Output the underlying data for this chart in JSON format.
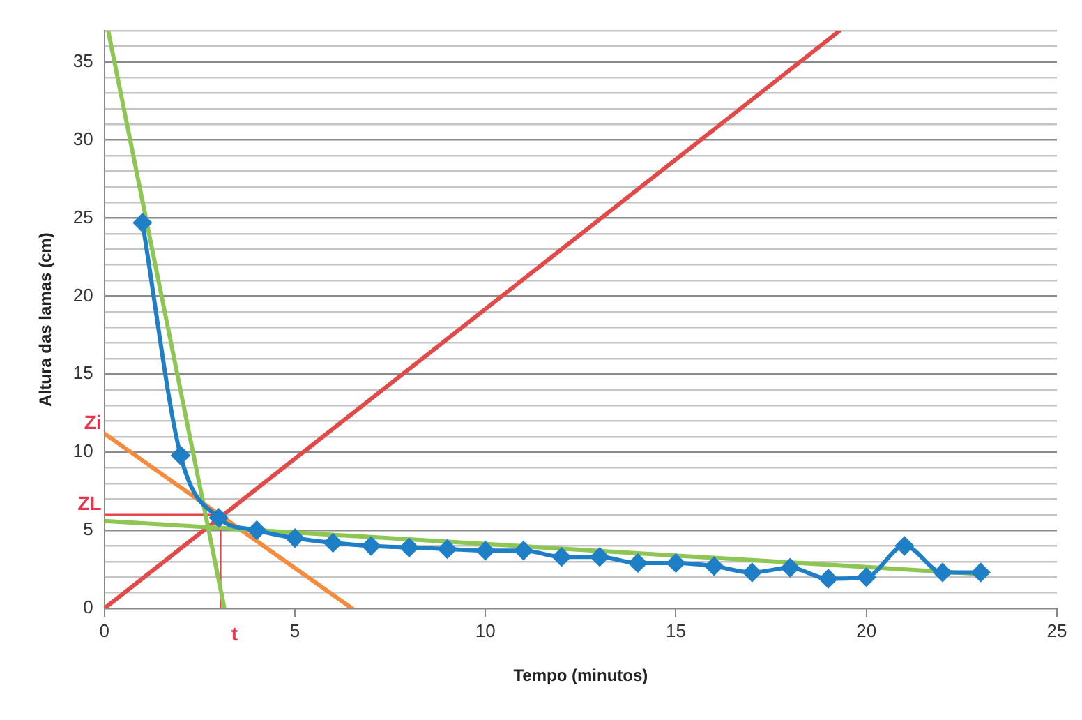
{
  "chart_data": {
    "type": "line",
    "xlabel": "Tempo (minutos)",
    "ylabel": "Altura das lamas (cm)",
    "xlim": [
      0,
      25
    ],
    "xticks": [
      0,
      5,
      10,
      15,
      20,
      25
    ],
    "ylim": [
      0,
      37
    ],
    "yticks": [
      0,
      {
        "value": 1,
        "label": null
      },
      {
        "value": 2,
        "label": null
      },
      {
        "value": 3,
        "label": null
      },
      {
        "value": 4,
        "label": null
      },
      5,
      {
        "value": 6,
        "label": null
      },
      {
        "value": 7,
        "label": null
      },
      {
        "value": 8,
        "label": null
      },
      {
        "value": 9,
        "label": null
      },
      10,
      {
        "value": 11,
        "label": null
      },
      {
        "value": 12,
        "label": null
      },
      {
        "value": 13,
        "label": null
      },
      {
        "value": 14,
        "label": null
      },
      15,
      {
        "value": 16,
        "label": null
      },
      {
        "value": 17,
        "label": null
      },
      {
        "value": 18,
        "label": null
      },
      {
        "value": 19,
        "label": null
      },
      20,
      {
        "value": 21,
        "label": null
      },
      {
        "value": 22,
        "label": null
      },
      {
        "value": 23,
        "label": null
      },
      {
        "value": 24,
        "label": null
      },
      25,
      {
        "value": 26,
        "label": null
      },
      {
        "value": 27,
        "label": null
      },
      {
        "value": 28,
        "label": null
      },
      {
        "value": 29,
        "label": null
      },
      30,
      {
        "value": 31,
        "label": null
      },
      {
        "value": 32,
        "label": null
      },
      {
        "value": 33,
        "label": null
      },
      {
        "value": 34,
        "label": null
      },
      35,
      {
        "value": 36,
        "label": null
      },
      {
        "value": 37,
        "label": null
      }
    ],
    "grid": "y",
    "legend": false,
    "series": [
      {
        "color": "#e8444c",
        "marker": "none",
        "x": [
          0,
          3.05,
          3.05
        ],
        "values": [
          6,
          6,
          0
        ]
      },
      {
        "color": "#e24a4a",
        "marker": "none",
        "x": [
          0,
          19.3
        ],
        "values": [
          0,
          37
        ]
      },
      {
        "color": "#f58b3c",
        "marker": "none",
        "x": [
          0,
          6.5
        ],
        "values": [
          11.2,
          0
        ]
      },
      {
        "color": "#8dc653",
        "marker": "none",
        "x": [
          0.1,
          3.15
        ],
        "values": [
          37,
          0
        ]
      },
      {
        "color": "#8dc653",
        "marker": "none",
        "x": [
          0,
          23
        ],
        "values": [
          5.6,
          2.2
        ]
      },
      {
        "color": "#1f7fc6",
        "marker": "diamond",
        "x": [
          1,
          2,
          3,
          4,
          5,
          6,
          7,
          8,
          9,
          10,
          11,
          12,
          13,
          14,
          15,
          16,
          17,
          18,
          19,
          20,
          21,
          22,
          23
        ],
        "values": [
          24.7,
          9.8,
          5.8,
          5.0,
          4.5,
          4.2,
          4.0,
          3.9,
          3.8,
          3.7,
          3.7,
          3.3,
          3.3,
          2.9,
          2.9,
          2.7,
          2.3,
          2.6,
          1.9,
          2.0,
          4.0,
          2.3,
          2.3
        ]
      }
    ],
    "annotations": [
      "Zi",
      "ZL",
      "t"
    ]
  }
}
